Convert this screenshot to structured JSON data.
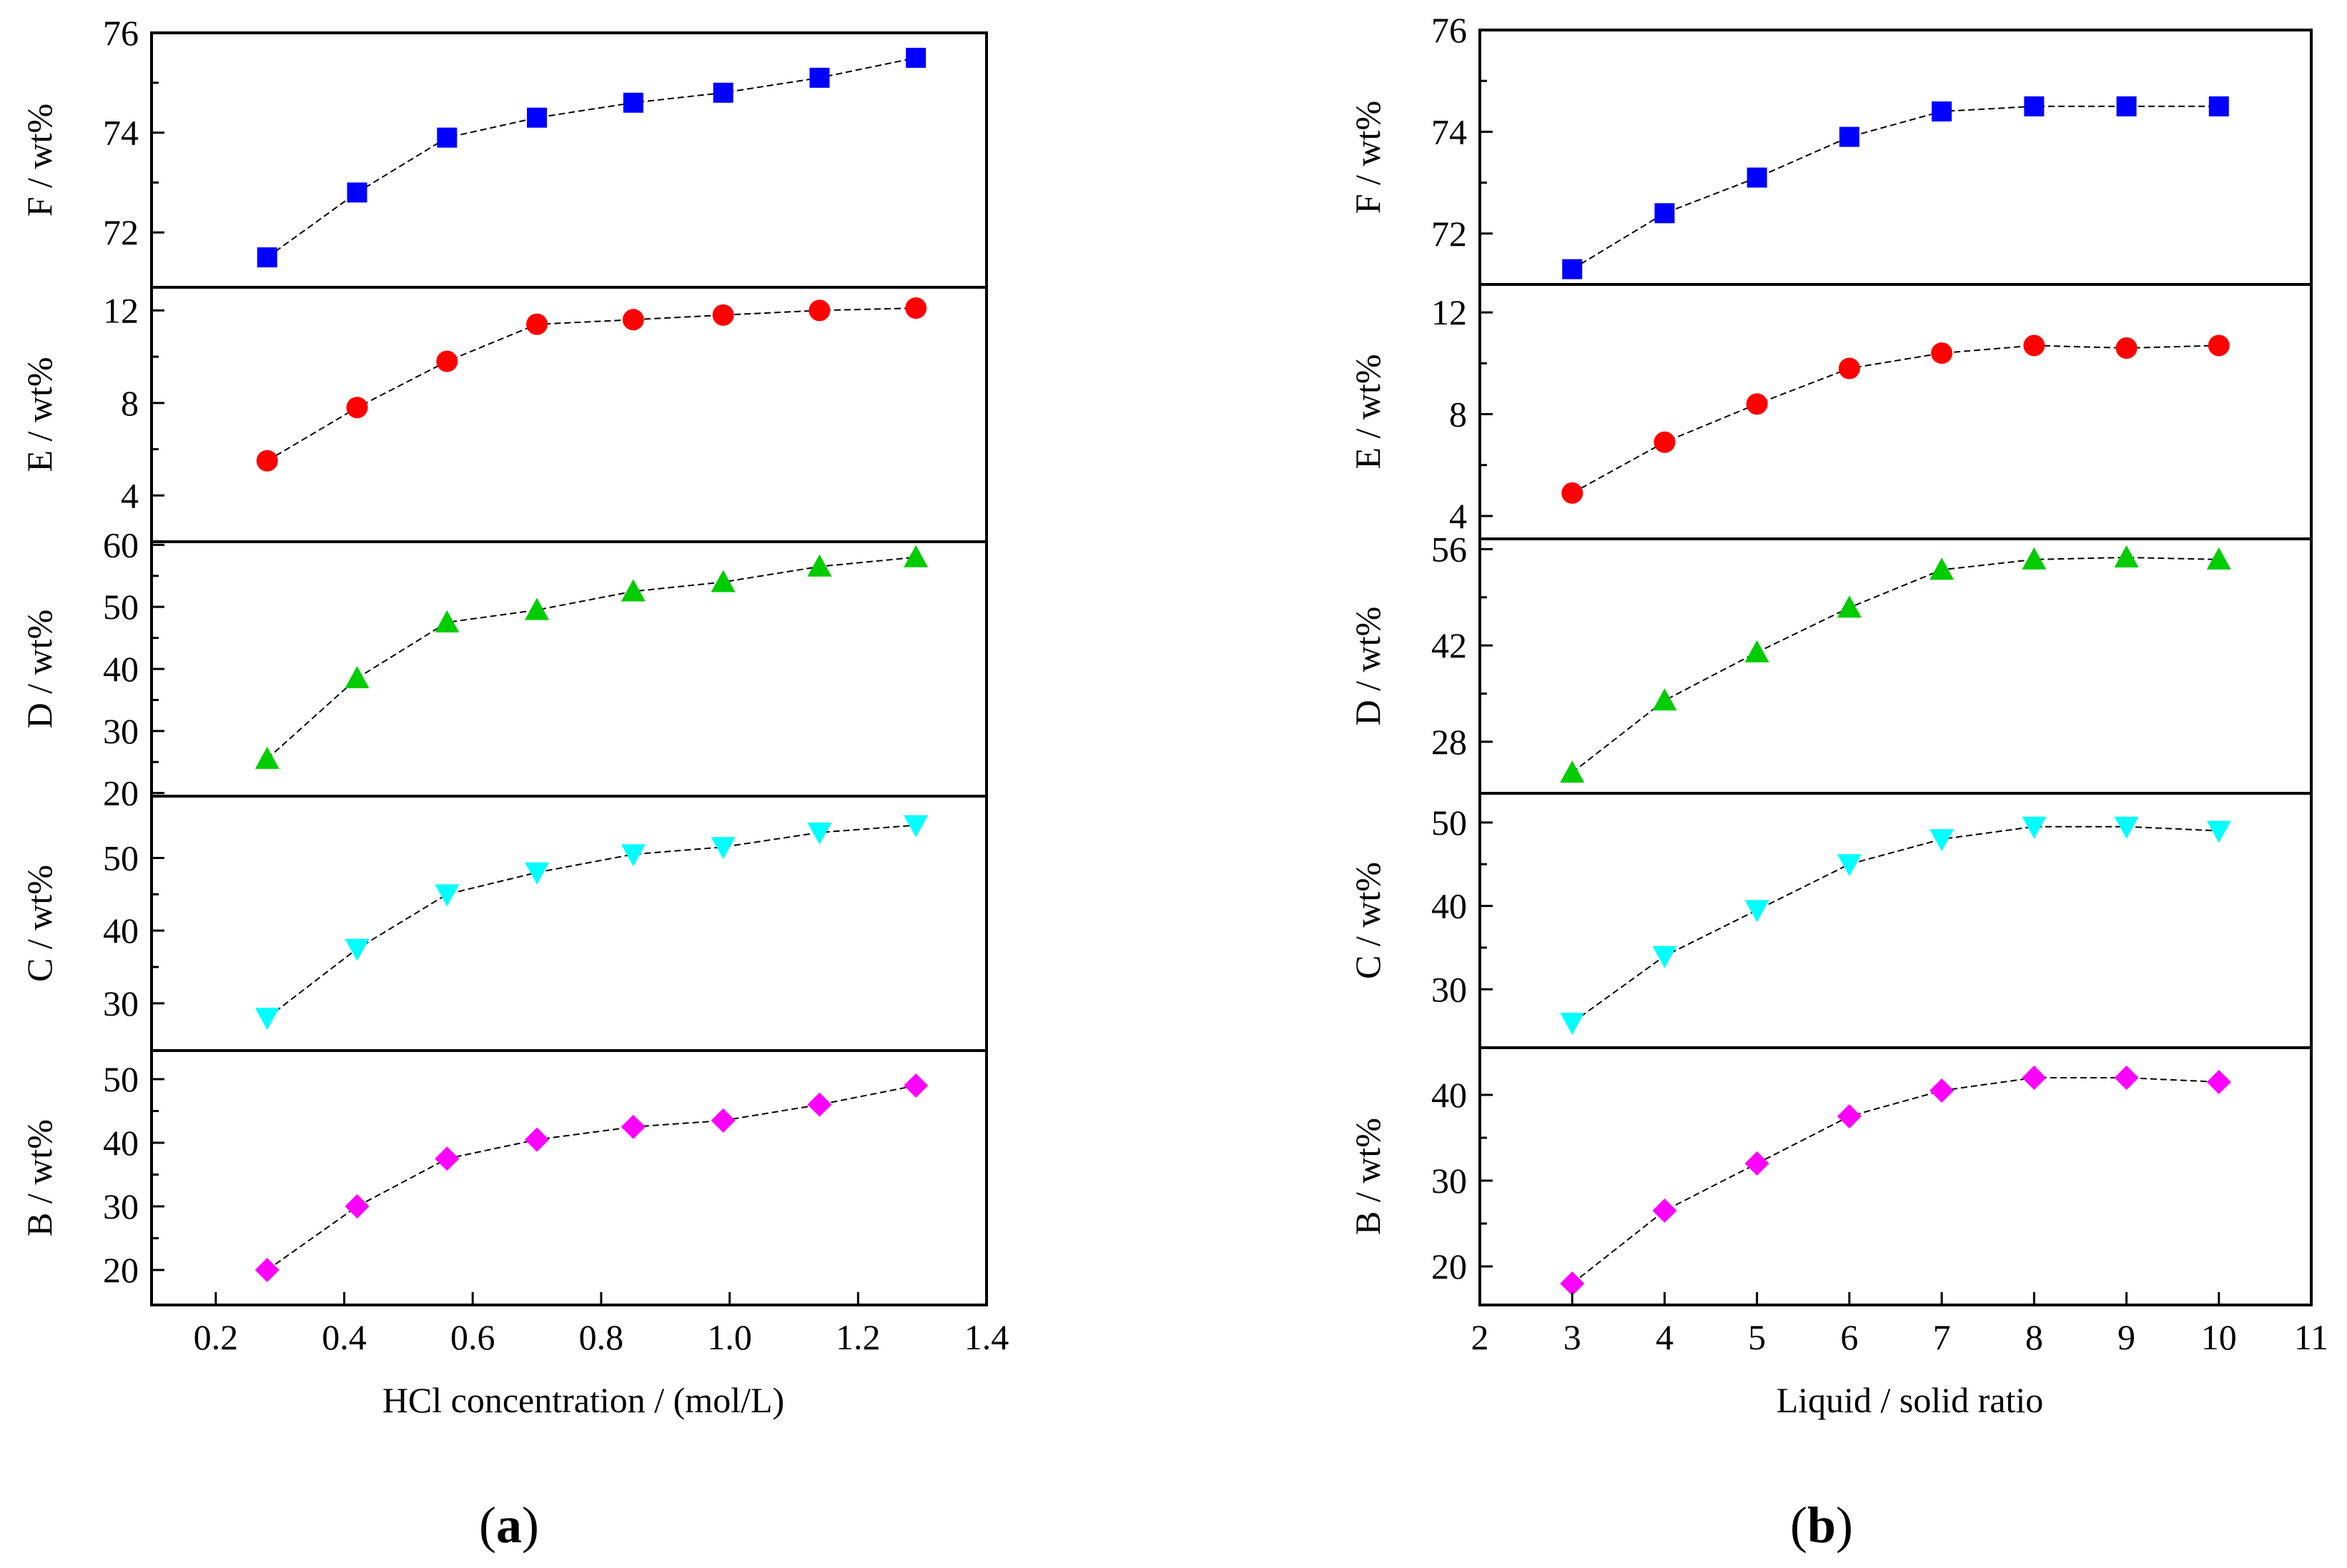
{
  "figure": {
    "panel_a_label": "(a)",
    "panel_b_label": "(b)",
    "panel_a_label_parts": [
      "(",
      "a",
      ")"
    ],
    "panel_b_label_parts": [
      "(",
      "b",
      ")"
    ]
  },
  "colors": {
    "F": "#0000ff",
    "E": "#ff0000",
    "D": "#00cc00",
    "C": "#00ffff",
    "B": "#ff00ff"
  },
  "chart_data": [
    {
      "id": "a",
      "type": "line",
      "xlabel": "HCl concentration / (mol/L)",
      "x": [
        0.28,
        0.42,
        0.56,
        0.7,
        0.85,
        0.99,
        1.14,
        1.29
      ],
      "xlim": [
        0.1,
        1.4
      ],
      "xticks": [
        0.2,
        0.4,
        0.6,
        0.8,
        1.0,
        1.2,
        1.4
      ],
      "xtick_labels": [
        "0.2",
        "0.4",
        "0.6",
        "0.8",
        "1.0",
        "1.2",
        "1.4"
      ],
      "stacked": true,
      "series": [
        {
          "name": "F",
          "ylabel": "F / wt%",
          "marker": "square",
          "values": [
            71.5,
            72.8,
            73.9,
            74.3,
            74.6,
            74.8,
            75.1,
            75.5
          ],
          "ylim": [
            70.9,
            76.0
          ],
          "yticks": [
            72,
            74,
            76
          ],
          "ytick_labels": [
            "72",
            "74",
            "76"
          ]
        },
        {
          "name": "E",
          "ylabel": "E / wt%",
          "marker": "circle",
          "values": [
            5.5,
            7.8,
            9.8,
            11.4,
            11.6,
            11.8,
            12.0,
            12.1
          ],
          "ylim": [
            2.0,
            13.0
          ],
          "yticks": [
            4,
            8,
            12
          ],
          "ytick_labels": [
            "4",
            "8",
            "12"
          ]
        },
        {
          "name": "D",
          "ylabel": "D / wt%",
          "marker": "triangle-up",
          "values": [
            25.5,
            38.5,
            47.5,
            49.5,
            52.5,
            54.0,
            56.5,
            58.0
          ],
          "ylim": [
            19.5,
            60.5
          ],
          "yticks": [
            20,
            30,
            40,
            50,
            60
          ],
          "ytick_labels": [
            "20",
            "30",
            "40",
            "50",
            "60"
          ]
        },
        {
          "name": "C",
          "ylabel": "C / wt%",
          "marker": "triangle-down",
          "values": [
            28.0,
            37.5,
            45.0,
            48.0,
            50.5,
            51.5,
            53.5,
            54.5
          ],
          "ylim": [
            23.5,
            58.5
          ],
          "yticks": [
            30,
            40,
            50
          ],
          "ytick_labels": [
            "30",
            "40",
            "50"
          ]
        },
        {
          "name": "B",
          "ylabel": "B / wt%",
          "marker": "diamond",
          "values": [
            20.0,
            30.0,
            37.5,
            40.5,
            42.5,
            43.5,
            46.0,
            49.0
          ],
          "ylim": [
            14.5,
            54.5
          ],
          "yticks": [
            20,
            30,
            40,
            50
          ],
          "ytick_labels": [
            "20",
            "30",
            "40",
            "50"
          ]
        }
      ]
    },
    {
      "id": "b",
      "type": "line",
      "xlabel": "Liquid / solid ratio",
      "x": [
        3,
        4,
        5,
        6,
        7,
        8,
        9,
        10
      ],
      "xlim": [
        2,
        11
      ],
      "xticks": [
        2,
        3,
        4,
        5,
        6,
        7,
        8,
        9,
        10,
        11
      ],
      "xtick_labels": [
        "2",
        "3",
        "4",
        "5",
        "6",
        "7",
        "8",
        "9",
        "10",
        "11"
      ],
      "stacked": true,
      "series": [
        {
          "name": "F",
          "ylabel": "F / wt%",
          "marker": "square",
          "values": [
            71.3,
            72.4,
            73.1,
            73.9,
            74.4,
            74.5,
            74.5,
            74.5
          ],
          "ylim": [
            71.0,
            76.0
          ],
          "yticks": [
            72,
            74,
            76
          ],
          "ytick_labels": [
            "72",
            "74",
            "76"
          ]
        },
        {
          "name": "E",
          "ylabel": "E / wt%",
          "marker": "circle",
          "values": [
            4.9,
            6.9,
            8.4,
            9.8,
            10.4,
            10.7,
            10.6,
            10.7
          ],
          "ylim": [
            3.1,
            13.1
          ],
          "yticks": [
            4,
            8,
            12
          ],
          "ytick_labels": [
            "4",
            "8",
            "12"
          ]
        },
        {
          "name": "D",
          "ylabel": "D / wt%",
          "marker": "triangle-up",
          "values": [
            23.5,
            34.0,
            41.0,
            47.5,
            53.0,
            54.5,
            54.8,
            54.5
          ],
          "ylim": [
            20.5,
            57.5
          ],
          "yticks": [
            28,
            42,
            56
          ],
          "ytick_labels": [
            "28",
            "42",
            "56"
          ]
        },
        {
          "name": "C",
          "ylabel": "C / wt%",
          "marker": "triangle-down",
          "values": [
            26.0,
            34.0,
            39.5,
            45.0,
            48.0,
            49.5,
            49.5,
            49.0
          ],
          "ylim": [
            23.0,
            53.5
          ],
          "yticks": [
            30,
            40,
            50
          ],
          "ytick_labels": [
            "30",
            "40",
            "50"
          ]
        },
        {
          "name": "B",
          "ylabel": "B / wt%",
          "marker": "diamond",
          "values": [
            18.0,
            26.5,
            32.0,
            37.5,
            40.5,
            42.0,
            42.0,
            41.5
          ],
          "ylim": [
            15.5,
            45.5
          ],
          "yticks": [
            20,
            30,
            40
          ],
          "ytick_labels": [
            "20",
            "30",
            "40"
          ]
        }
      ]
    }
  ]
}
